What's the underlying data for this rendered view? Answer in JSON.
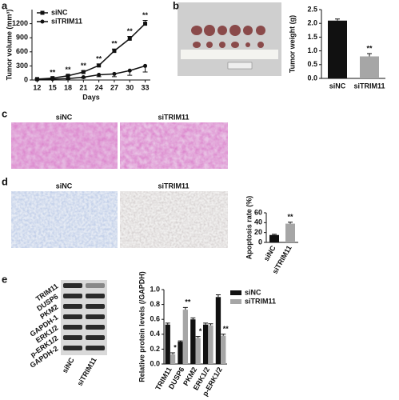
{
  "panel_labels": [
    "a",
    "b",
    "c",
    "d",
    "e"
  ],
  "images": {
    "c": {
      "labels": [
        "siNC",
        "siTRIM11"
      ]
    },
    "d": {
      "labels": [
        "siNC",
        "siTRIM11"
      ]
    },
    "e": {
      "bands": [
        "TRIM11",
        "DUSP6",
        "PKM2",
        "GAPDH-1",
        "ERK1/2",
        "p-ERK1/2",
        "GAPDH-2"
      ],
      "lanes": [
        "siNC",
        "siTRIM11"
      ]
    }
  },
  "chart_data": [
    {
      "type": "line",
      "xlabel": "Days",
      "ylabel": "Tumor volume (mm³)",
      "x": [
        12,
        15,
        18,
        21,
        24,
        27,
        30,
        33
      ],
      "xlim": [
        11,
        34
      ],
      "xticks": [
        12,
        15,
        18,
        21,
        24,
        27,
        30,
        33
      ],
      "ylim": [
        0,
        1500
      ],
      "yticks": [
        0,
        300,
        600,
        900,
        1200
      ],
      "series": [
        {
          "name": "siNC",
          "color": "#111111",
          "values": [
            20,
            40,
            90,
            170,
            310,
            620,
            880,
            1200
          ],
          "errors": [
            5,
            10,
            15,
            20,
            30,
            40,
            50,
            70
          ]
        },
        {
          "name": "siTRIM11",
          "color": "#111111",
          "values": [
            10,
            20,
            30,
            60,
            110,
            130,
            200,
            300
          ],
          "errors": [
            5,
            8,
            10,
            20,
            40,
            60,
            100,
            130
          ]
        }
      ],
      "significance": [
        null,
        "**",
        "**",
        "**",
        "**",
        "**",
        "**",
        "**"
      ],
      "legend": "upper left"
    },
    {
      "type": "bar",
      "ylabel": "Tumor weight (g)",
      "categories": [
        "siNC",
        "siTRIM11"
      ],
      "values": [
        2.1,
        0.8
      ],
      "errors": [
        0.06,
        0.1
      ],
      "colors": [
        "#111111",
        "#a6a6a6"
      ],
      "ylim": [
        0,
        2.5
      ],
      "yticks": [
        {
          "value": 0,
          "label": "0.0"
        },
        0.5,
        {
          "value": 1,
          "label": "1.0"
        },
        1.5,
        {
          "value": 2,
          "label": "2.0"
        },
        2.5
      ],
      "significance": [
        null,
        "**"
      ],
      "rotate_labels": false
    },
    {
      "type": "bar",
      "ylabel": "Apoptosis rate (%)",
      "categories": [
        "siNC",
        "siTRIM11"
      ],
      "values": [
        15,
        38
      ],
      "errors": [
        1.5,
        3
      ],
      "colors": [
        "#111111",
        "#a6a6a6"
      ],
      "ylim": [
        0,
        60
      ],
      "yticks": [
        0,
        20,
        40,
        60
      ],
      "significance": [
        null,
        "**"
      ],
      "rotate_labels": true
    },
    {
      "type": "grouped_bar",
      "ylabel": "Relative protein levels (/GAPDH)",
      "categories": [
        "TRIM11",
        "DUSP6",
        "PKM2",
        "ERK1/2",
        "p-ERK1/2"
      ],
      "series": [
        {
          "name": "siNC",
          "color": "#111111",
          "values": [
            0.53,
            0.3,
            0.6,
            0.53,
            0.9
          ],
          "errors": [
            0.02,
            0.01,
            0.02,
            0.02,
            0.03
          ]
        },
        {
          "name": "siTRIM11",
          "color": "#a6a6a6",
          "values": [
            0.13,
            0.73,
            0.35,
            0.52,
            0.38
          ],
          "errors": [
            0.02,
            0.03,
            0.02,
            0.02,
            0.02
          ],
          "significance": [
            "*",
            "**",
            "*",
            null,
            "**"
          ]
        }
      ],
      "ylim": [
        0,
        1
      ],
      "yticks": [
        {
          "value": 0,
          "label": "0.0"
        },
        0.2,
        0.4,
        0.6,
        0.8,
        {
          "value": 1,
          "label": "1.0"
        }
      ],
      "legend": "upper right",
      "rotate_labels": true
    }
  ]
}
